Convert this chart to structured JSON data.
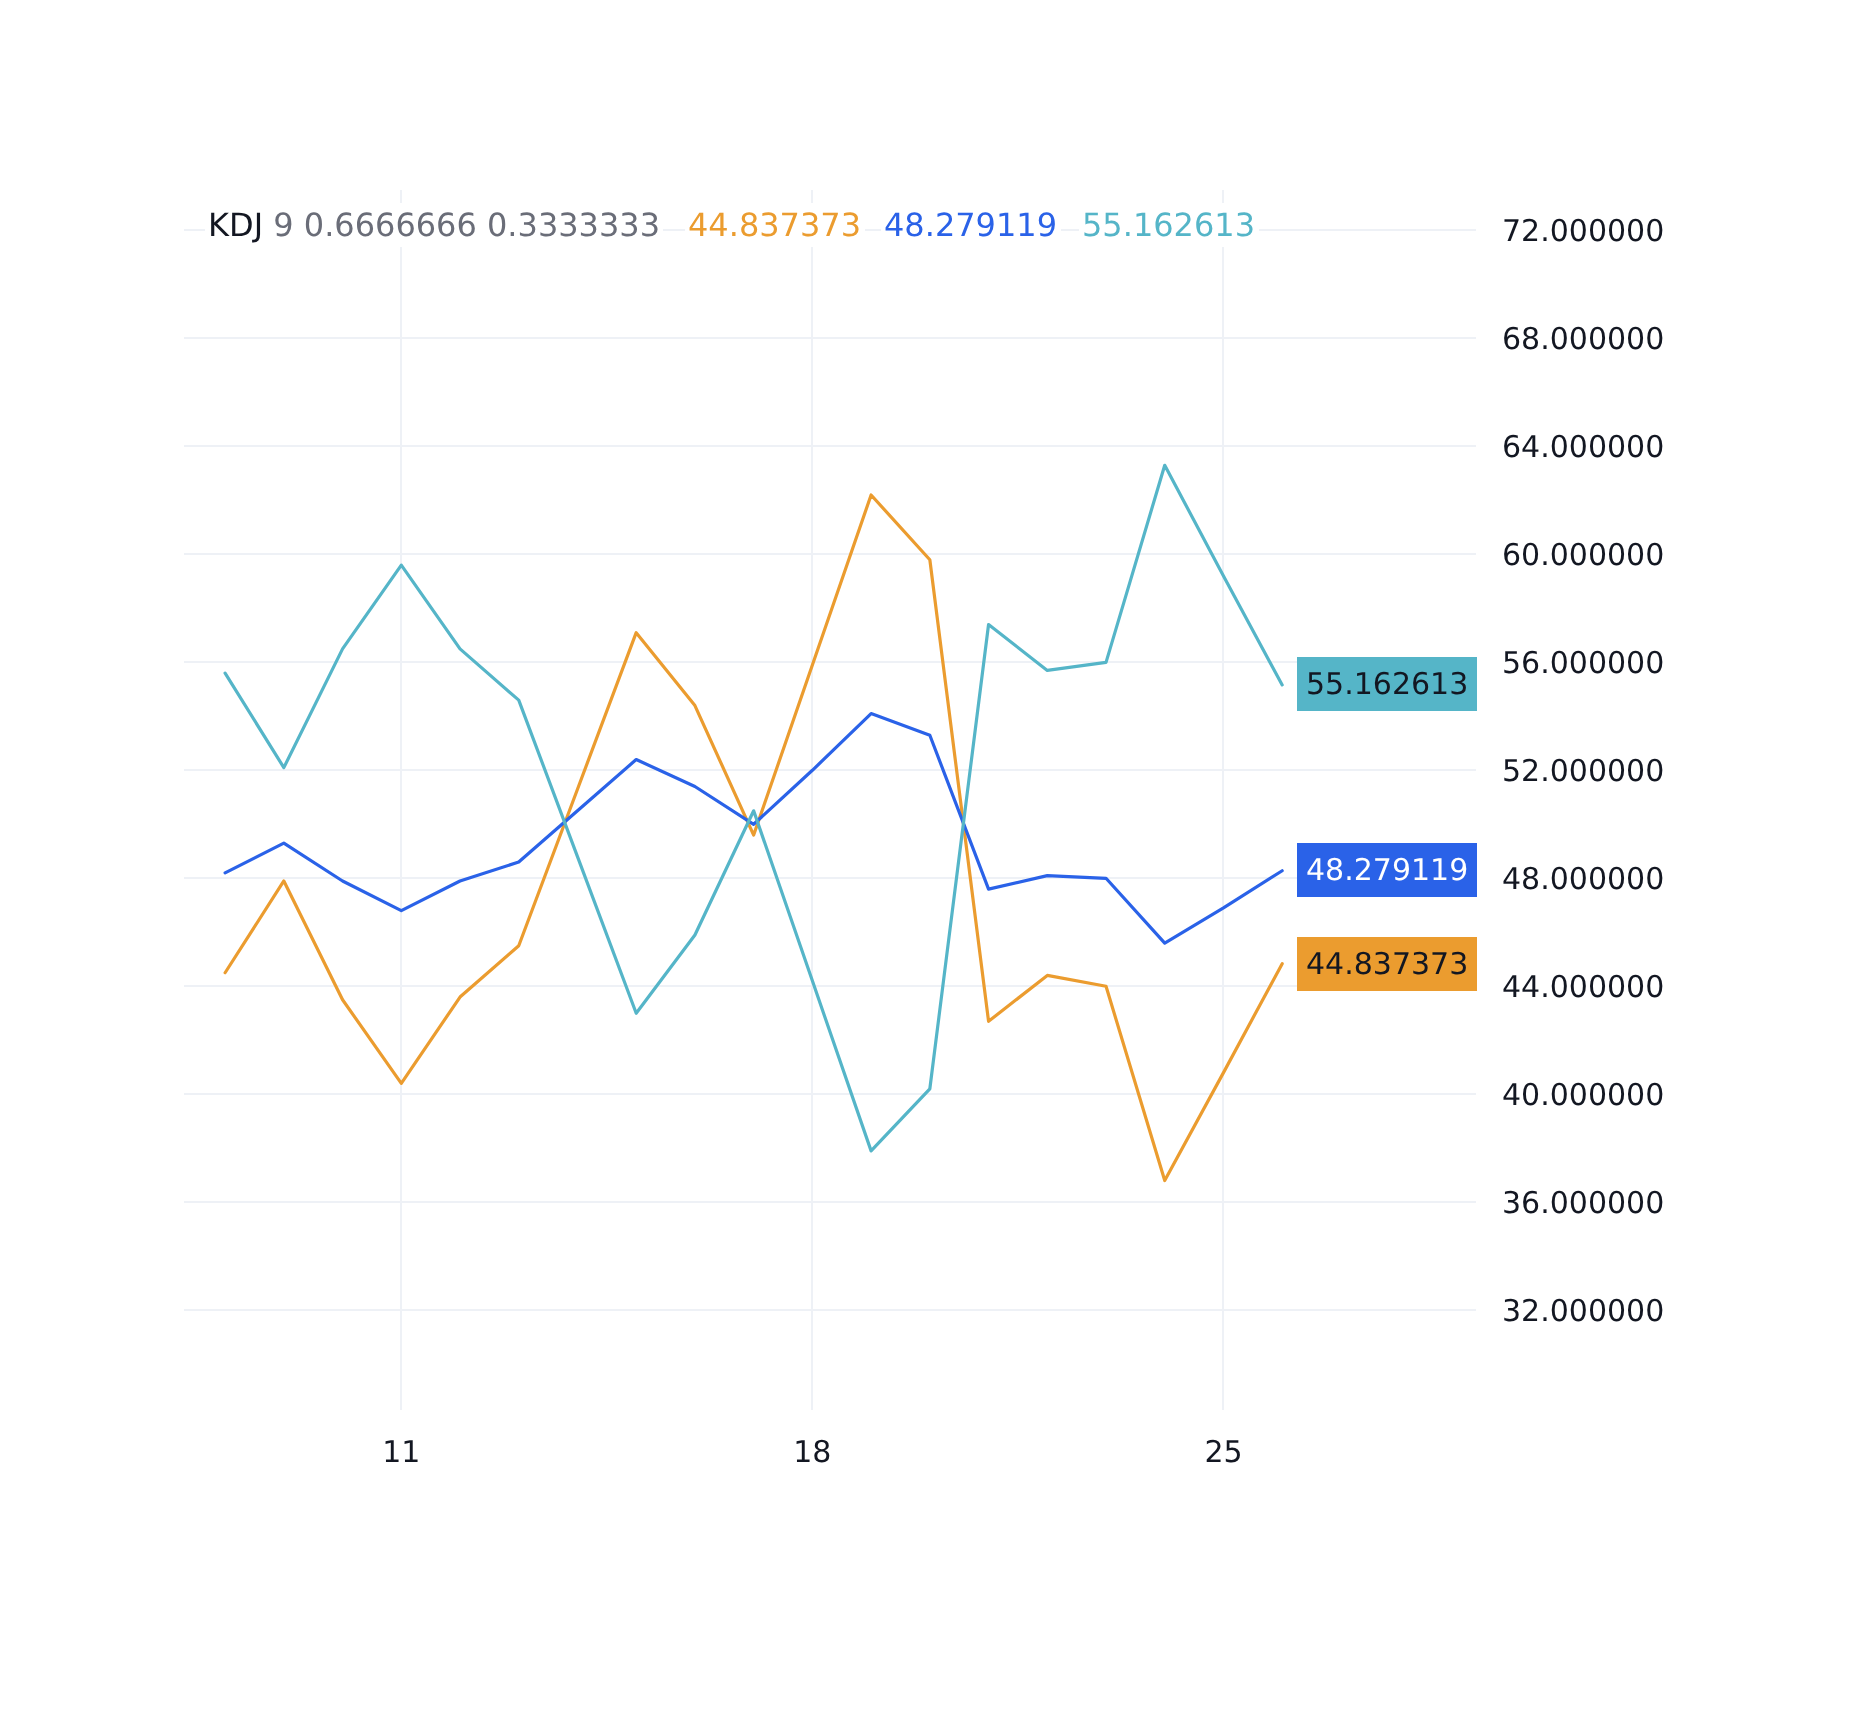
{
  "chart_data": {
    "type": "line",
    "title": "KDJ 9 0.6666666 0.3333333",
    "x": [
      8,
      9,
      10,
      11,
      12,
      13,
      14,
      15,
      16,
      17,
      18,
      19,
      20,
      21,
      22,
      23,
      24,
      25,
      26
    ],
    "series": [
      {
        "name": "44.837373",
        "color": "#eb9c2f",
        "values": [
          44.5,
          47.9,
          43.5,
          40.4,
          43.6,
          45.5,
          51.3,
          57.1,
          54.4,
          49.6,
          55.9,
          62.2,
          59.8,
          42.7,
          44.4,
          44.0,
          36.8,
          40.8,
          44.837373
        ],
        "value_labels": [
          null,
          null,
          null,
          null,
          null,
          null,
          null,
          null,
          null,
          null,
          null,
          null,
          null,
          null,
          null,
          null,
          null,
          null,
          "44.837373"
        ]
      },
      {
        "name": "48.279119",
        "color": "#2a62e8",
        "values": [
          48.2,
          49.3,
          47.9,
          46.8,
          47.9,
          48.6,
          50.5,
          52.4,
          51.4,
          50.0,
          52.0,
          54.1,
          53.3,
          47.6,
          48.1,
          48.0,
          45.6,
          46.9,
          48.279119
        ],
        "value_labels": [
          null,
          null,
          null,
          null,
          null,
          null,
          null,
          null,
          null,
          null,
          null,
          null,
          null,
          null,
          null,
          null,
          null,
          null,
          "48.279119"
        ]
      },
      {
        "name": "55.162613",
        "color": "#55b5c8",
        "values": [
          55.6,
          52.1,
          56.5,
          59.6,
          56.5,
          54.6,
          48.8,
          43.0,
          45.9,
          50.5,
          44.2,
          37.9,
          40.2,
          57.4,
          55.7,
          56.0,
          63.3,
          59.2,
          55.162613
        ],
        "value_labels": [
          null,
          null,
          null,
          null,
          null,
          null,
          null,
          null,
          null,
          null,
          null,
          null,
          null,
          null,
          null,
          null,
          null,
          null,
          "55.162613"
        ]
      }
    ],
    "xlim": [
      7.3,
      29.3
    ],
    "xticks": [
      11,
      18,
      25
    ],
    "ylim": [
      28.3,
      73.5
    ],
    "yticks": [
      {
        "value": 32,
        "label": "32.000000"
      },
      {
        "value": 36,
        "label": "36.000000"
      },
      {
        "value": 40,
        "label": "40.000000"
      },
      {
        "value": 44,
        "label": "44.000000"
      },
      {
        "value": 48,
        "label": "48.000000"
      },
      {
        "value": 52,
        "label": "52.000000"
      },
      {
        "value": 56,
        "label": "56.000000"
      },
      {
        "value": 60,
        "label": "60.000000"
      },
      {
        "value": 64,
        "label": "64.000000"
      },
      {
        "value": 68,
        "label": "68.000000"
      },
      {
        "value": 72,
        "label": "72.000000"
      }
    ],
    "grid": true,
    "legend": "top"
  }
}
